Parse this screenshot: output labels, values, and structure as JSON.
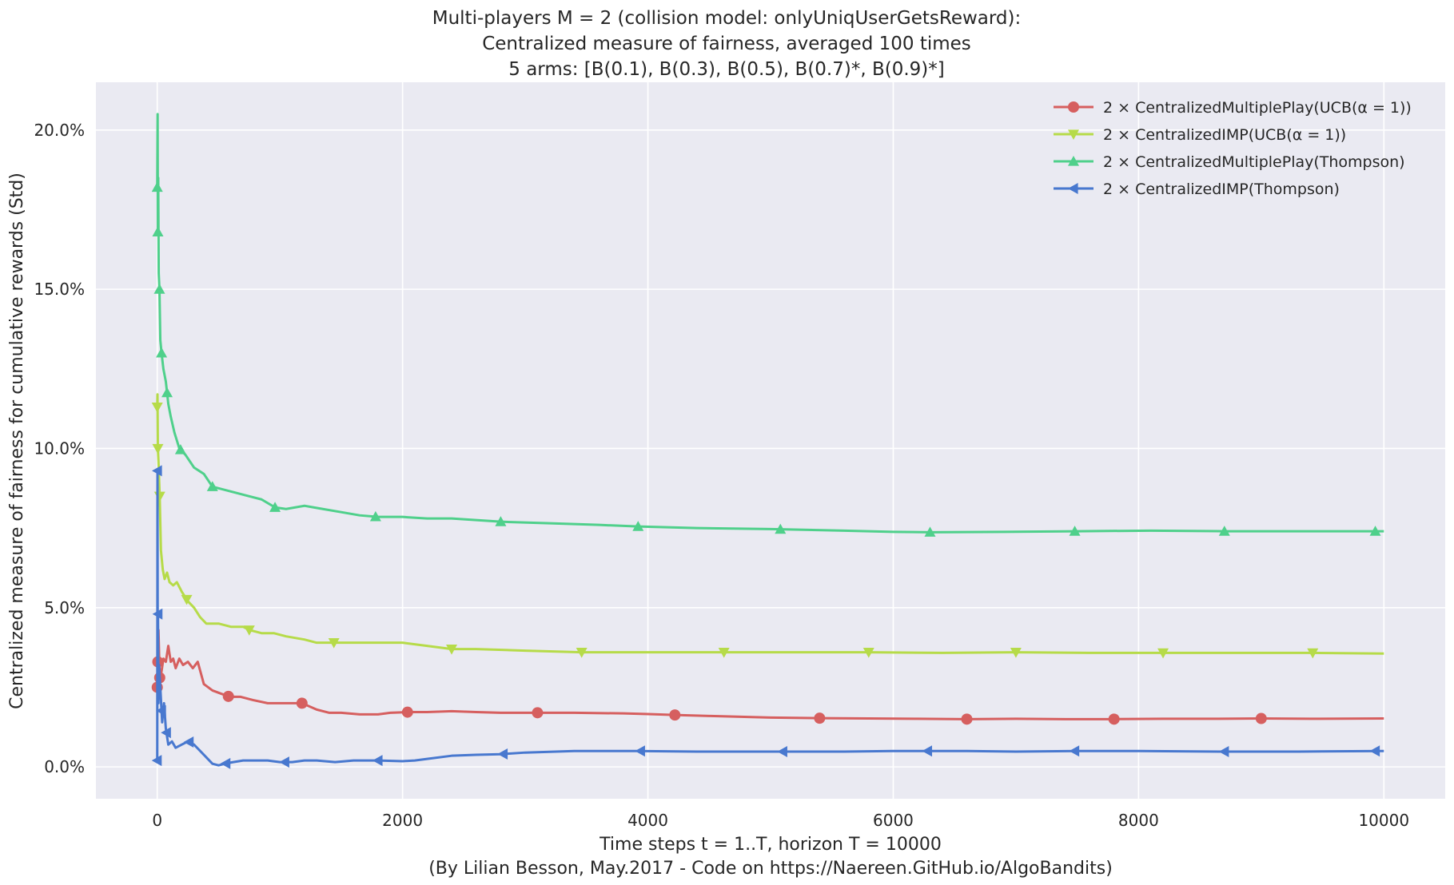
{
  "chart_data": {
    "type": "line",
    "title": [
      "Multi-players M = 2 (collision model: onlyUniqUserGetsReward):",
      "Centralized measure of fairness, averaged 100 times",
      "5 arms: [B(0.1), B(0.3), B(0.5), B(0.7)*, B(0.9)*]"
    ],
    "xlabel": "Time steps t = 1..T, horizon T = 10000",
    "xlabel2": "(By Lilian Besson, May.2017 - Code on https://Naereen.GitHub.io/AlgoBandits)",
    "ylabel": "Centralized measure of fairness for cumulative rewards (Std)",
    "xlim": [
      -500,
      10500
    ],
    "ylim": [
      -0.01,
      0.215
    ],
    "xticks": [
      0,
      2000,
      4000,
      6000,
      8000,
      10000
    ],
    "xtick_labels": [
      "0",
      "2000",
      "4000",
      "6000",
      "8000",
      "10000"
    ],
    "yticks": [
      0.0,
      0.05,
      0.1,
      0.15,
      0.2
    ],
    "ytick_labels": [
      "0.0%",
      "5.0%",
      "10.0%",
      "15.0%",
      "20.0%"
    ],
    "grid": true,
    "legend_position": "top-right",
    "background": "#eaeaf2",
    "series": [
      {
        "name": "2 × CentralizedMultiplePlay(UCB(α = 1))",
        "color": "#d65f5f",
        "marker": "circle",
        "x": [
          0,
          5,
          10,
          20,
          35,
          50,
          70,
          90,
          110,
          130,
          150,
          180,
          210,
          250,
          290,
          330,
          380,
          450,
          520,
          590,
          680,
          780,
          900,
          1000,
          1100,
          1180,
          1300,
          1400,
          1500,
          1650,
          1800,
          1900,
          2040,
          2200,
          2400,
          2600,
          2800,
          3100,
          3400,
          3800,
          4000,
          4220,
          4500,
          5000,
          5400,
          5800,
          6200,
          6600,
          7000,
          7400,
          7800,
          8200,
          8600,
          9000,
          9400,
          10000
        ],
        "y": [
          0.025,
          0.033,
          0.043,
          0.028,
          0.03,
          0.034,
          0.033,
          0.038,
          0.033,
          0.034,
          0.031,
          0.034,
          0.032,
          0.033,
          0.031,
          0.033,
          0.026,
          0.024,
          0.023,
          0.022,
          0.022,
          0.021,
          0.02,
          0.02,
          0.02,
          0.02,
          0.018,
          0.017,
          0.017,
          0.0165,
          0.0165,
          0.017,
          0.0172,
          0.0172,
          0.0175,
          0.0172,
          0.017,
          0.017,
          0.017,
          0.0168,
          0.0166,
          0.0163,
          0.016,
          0.0155,
          0.0153,
          0.0152,
          0.0151,
          0.015,
          0.0151,
          0.015,
          0.015,
          0.0151,
          0.0151,
          0.0152,
          0.0151,
          0.0152
        ],
        "marker_x": [
          0,
          5,
          20,
          580,
          1180,
          2040,
          3100,
          4220,
          5400,
          6600,
          7800,
          9000
        ]
      },
      {
        "name": "2 × CentralizedIMP(UCB(α = 1))",
        "color": "#b6db49",
        "marker": "triangle-down",
        "x": [
          0,
          2,
          5,
          10,
          20,
          30,
          45,
          60,
          80,
          100,
          130,
          160,
          200,
          250,
          300,
          350,
          400,
          500,
          600,
          700,
          750,
          850,
          950,
          1050,
          1200,
          1300,
          1440,
          1600,
          1800,
          2000,
          2200,
          2400,
          2600,
          3000,
          3460,
          4000,
          4620,
          5200,
          5800,
          6400,
          7000,
          7600,
          8200,
          8800,
          9420,
          10000
        ],
        "y": [
          0.113,
          0.117,
          0.1,
          0.096,
          0.085,
          0.068,
          0.062,
          0.059,
          0.061,
          0.058,
          0.057,
          0.058,
          0.055,
          0.052,
          0.05,
          0.047,
          0.045,
          0.045,
          0.044,
          0.044,
          0.043,
          0.042,
          0.042,
          0.041,
          0.04,
          0.039,
          0.039,
          0.039,
          0.039,
          0.039,
          0.038,
          0.037,
          0.037,
          0.0365,
          0.036,
          0.036,
          0.036,
          0.036,
          0.036,
          0.0358,
          0.036,
          0.0358,
          0.0358,
          0.0358,
          0.0358,
          0.0356
        ],
        "marker_x": [
          0,
          5,
          20,
          240,
          750,
          1440,
          2400,
          3460,
          4620,
          5800,
          7000,
          8200,
          9420
        ]
      },
      {
        "name": "2 × CentralizedMultiplePlay(Thompson)",
        "color": "#4fd08b",
        "marker": "triangle-up",
        "x": [
          0,
          3,
          5,
          8,
          12,
          18,
          25,
          35,
          50,
          70,
          90,
          110,
          140,
          180,
          230,
          300,
          380,
          450,
          550,
          650,
          750,
          850,
          960,
          1050,
          1200,
          1350,
          1500,
          1650,
          1800,
          2000,
          2200,
          2400,
          2600,
          2800,
          3200,
          3600,
          3920,
          4400,
          5000,
          5600,
          6000,
          6300,
          6900,
          7500,
          8100,
          8700,
          9300,
          10000
        ],
        "y": [
          0.182,
          0.205,
          0.168,
          0.185,
          0.155,
          0.15,
          0.134,
          0.13,
          0.125,
          0.121,
          0.114,
          0.11,
          0.105,
          0.1,
          0.098,
          0.094,
          0.092,
          0.088,
          0.087,
          0.086,
          0.085,
          0.084,
          0.0815,
          0.081,
          0.082,
          0.081,
          0.08,
          0.079,
          0.0785,
          0.0785,
          0.078,
          0.078,
          0.0775,
          0.077,
          0.0765,
          0.076,
          0.0755,
          0.075,
          0.0747,
          0.0742,
          0.0738,
          0.0737,
          0.0738,
          0.074,
          0.0742,
          0.074,
          0.074,
          0.074
        ],
        "marker_x": [
          0,
          5,
          18,
          35,
          80,
          190,
          450,
          960,
          1780,
          2800,
          3920,
          5080,
          6300,
          7480,
          8700,
          9930
        ]
      },
      {
        "name": "2 × CentralizedIMP(Thompson)",
        "color": "#4878cf",
        "marker": "triangle-left",
        "x": [
          0,
          2,
          4,
          6,
          8,
          10,
          15,
          25,
          40,
          55,
          70,
          90,
          120,
          150,
          200,
          250,
          300,
          350,
          400,
          450,
          500,
          550,
          620,
          700,
          800,
          900,
          1000,
          1100,
          1200,
          1300,
          1450,
          1600,
          1800,
          2000,
          2100,
          2200,
          2400,
          2600,
          2800,
          3000,
          3400,
          3900,
          4400,
          5000,
          5600,
          6000,
          6600,
          7000,
          7500,
          8000,
          8700,
          9300,
          10000
        ],
        "y": [
          0.002,
          0.093,
          0.03,
          0.048,
          0.035,
          0.02,
          0.032,
          0.025,
          0.014,
          0.02,
          0.012,
          0.007,
          0.008,
          0.006,
          0.007,
          0.008,
          0.007,
          0.005,
          0.003,
          0.001,
          0.0005,
          0.001,
          0.0015,
          0.002,
          0.002,
          0.002,
          0.0015,
          0.0015,
          0.002,
          0.002,
          0.0015,
          0.002,
          0.002,
          0.0018,
          0.002,
          0.0025,
          0.0035,
          0.0038,
          0.004,
          0.0045,
          0.005,
          0.005,
          0.0048,
          0.0048,
          0.0048,
          0.005,
          0.005,
          0.0048,
          0.005,
          0.005,
          0.0048,
          0.0048,
          0.005
        ],
        "marker_x": [
          0,
          2,
          6,
          35,
          75,
          260,
          560,
          1040,
          1800,
          2820,
          3940,
          5100,
          6280,
          7480,
          8700,
          9930
        ]
      }
    ]
  }
}
